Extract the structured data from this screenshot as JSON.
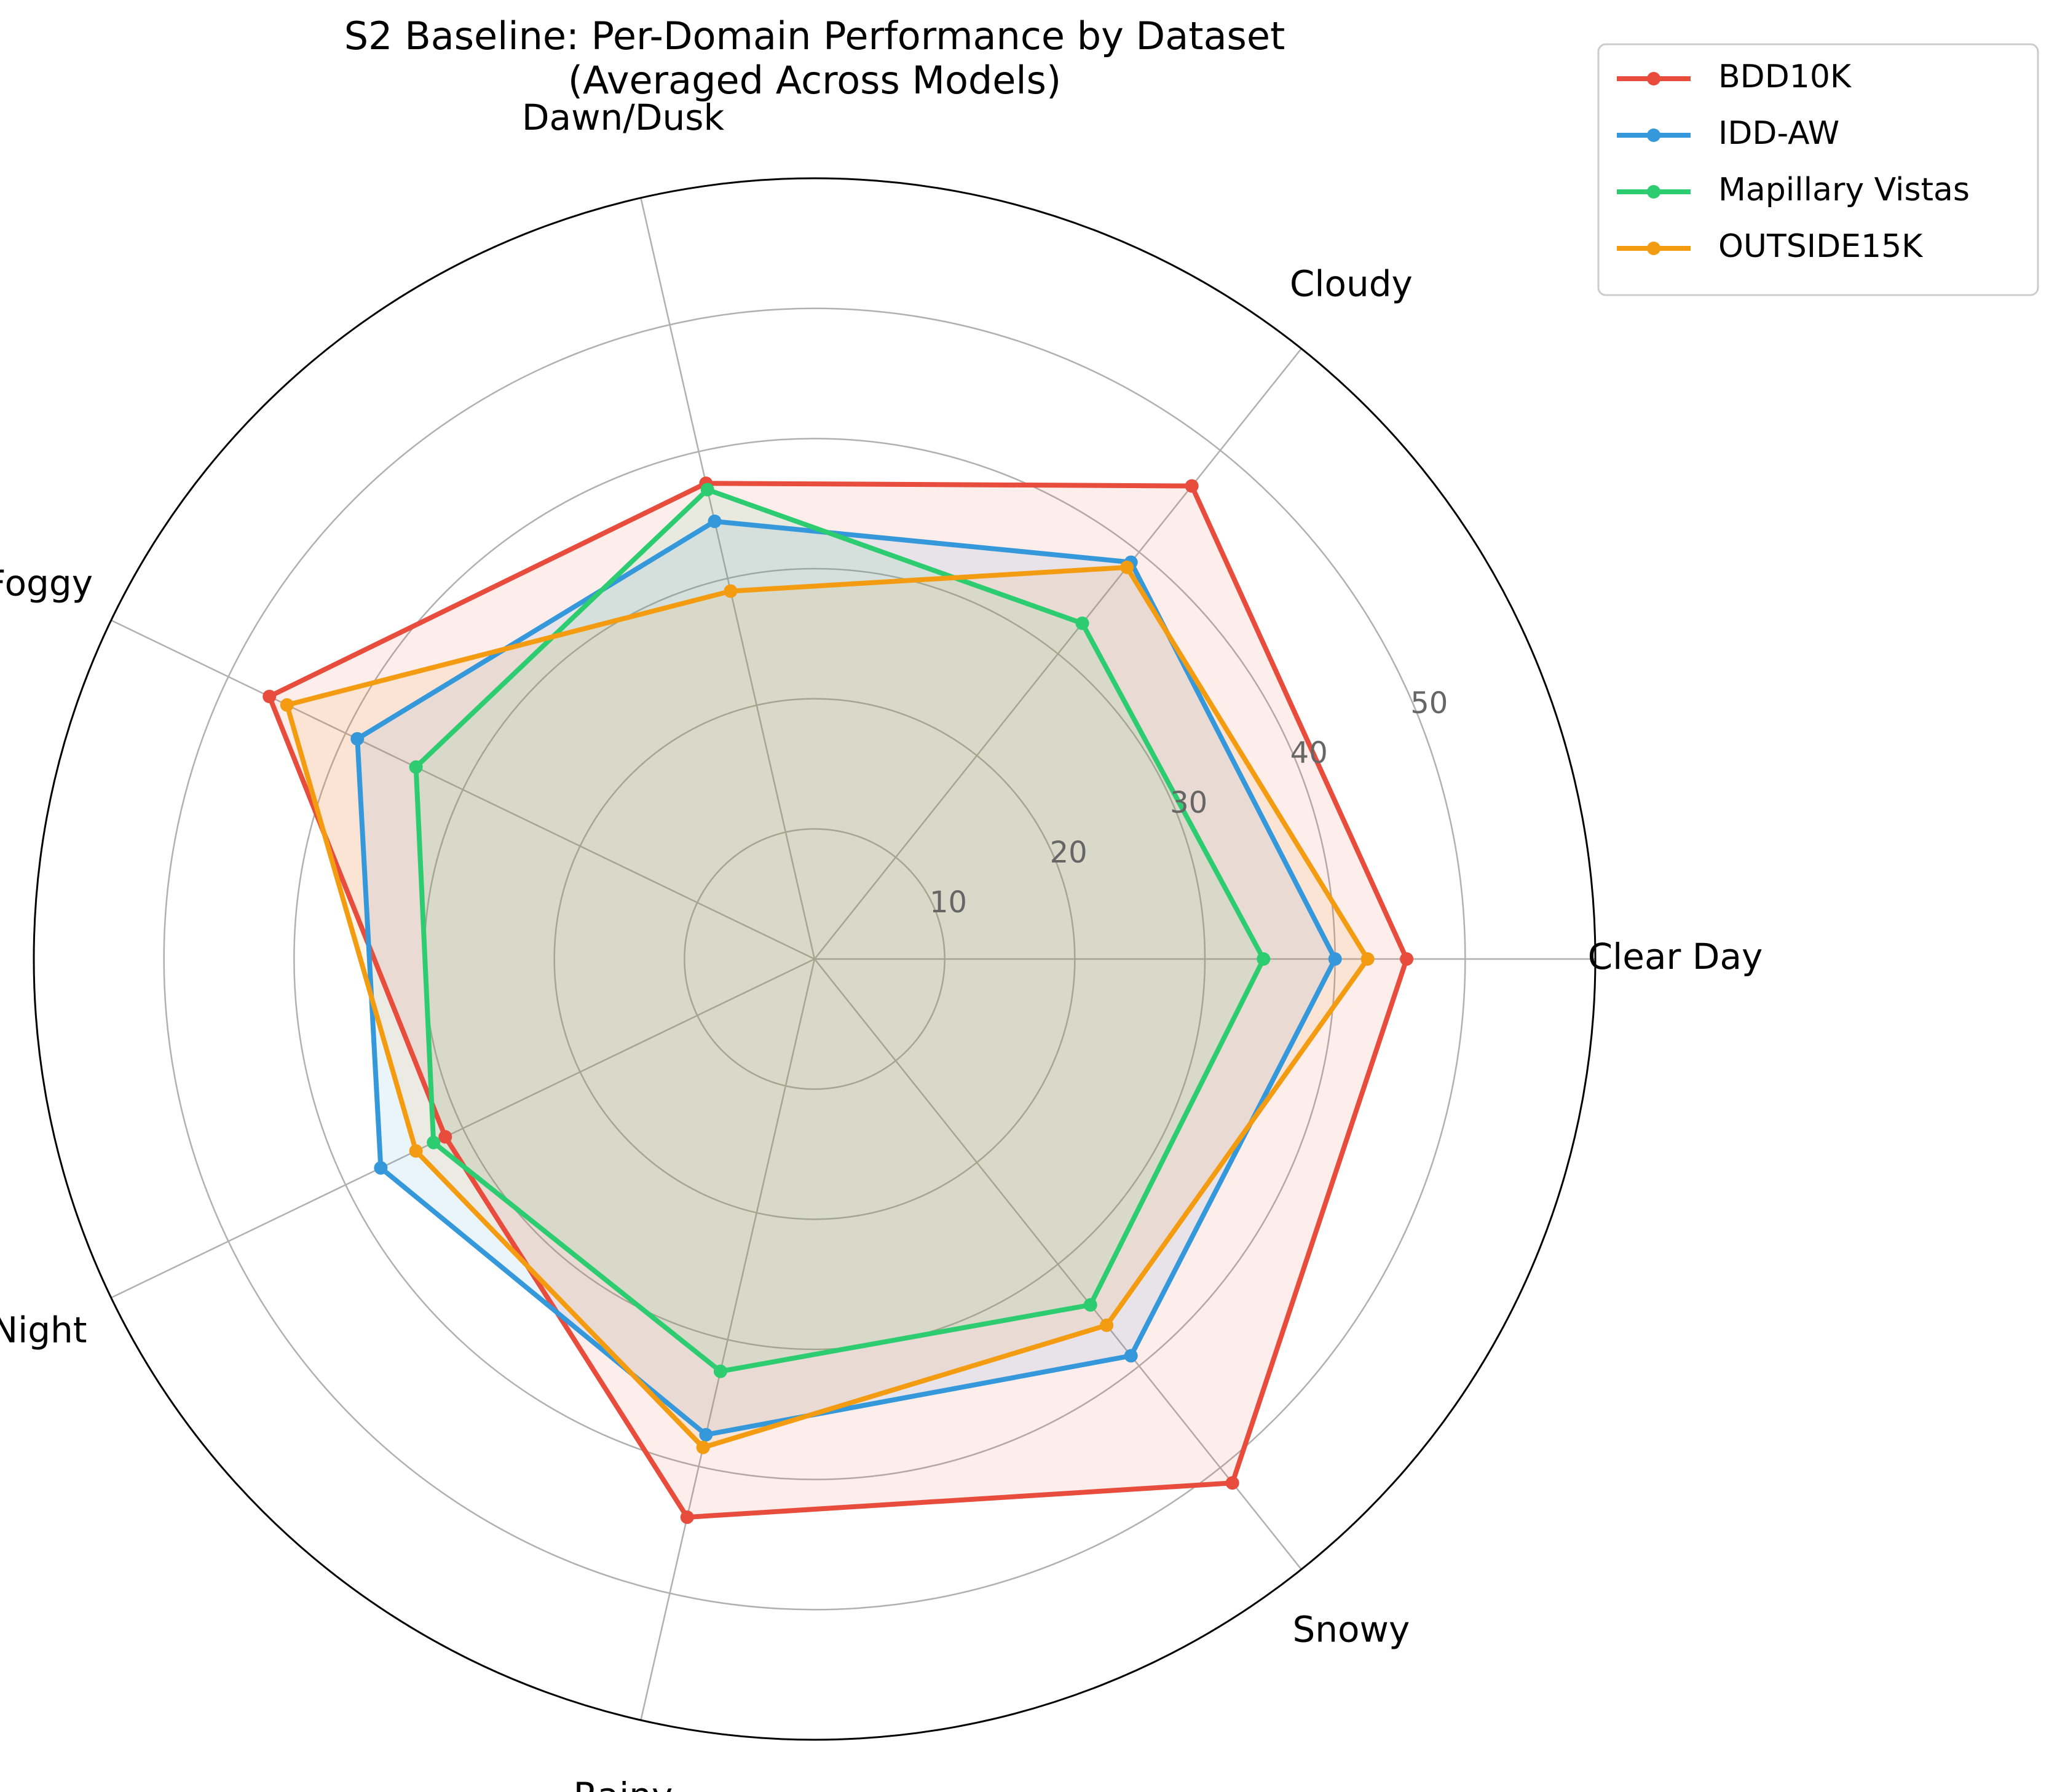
{
  "chart_data": {
    "type": "radar",
    "title": [
      "S2 Baseline: Per-Domain Performance by Dataset",
      "(Averaged Across Models)"
    ],
    "categories": [
      "Clear Day",
      "Cloudy",
      "Dawn/Dusk",
      "Foggy",
      "Night",
      "Rainy",
      "Snowy"
    ],
    "rlim": [
      0,
      60
    ],
    "rticks": [
      10,
      20,
      30,
      40,
      50
    ],
    "rtick_labels": [
      "10",
      "20",
      "30",
      "40",
      "50"
    ],
    "grid": true,
    "legend_position": "top-right outside",
    "series": [
      {
        "name": "BDD10K",
        "color": "#e74c3c",
        "fill_alpha": 0.1,
        "values": [
          45.5,
          46.5,
          37.5,
          46.5,
          31.5,
          44.0,
          51.5
        ]
      },
      {
        "name": "IDD-AW",
        "color": "#3498db",
        "fill_alpha": 0.1,
        "values": [
          40.0,
          39.0,
          34.5,
          39.0,
          37.0,
          37.5,
          39.0
        ]
      },
      {
        "name": "Mapillary Vistas",
        "color": "#2ecc71",
        "fill_alpha": 0.1,
        "values": [
          34.5,
          33.0,
          37.0,
          34.0,
          32.5,
          32.5,
          34.0
        ]
      },
      {
        "name": "OUTSIDE15K",
        "color": "#f39c12",
        "fill_alpha": 0.1,
        "values": [
          42.5,
          38.5,
          29.0,
          45.0,
          34.0,
          38.5,
          36.0
        ]
      }
    ]
  }
}
